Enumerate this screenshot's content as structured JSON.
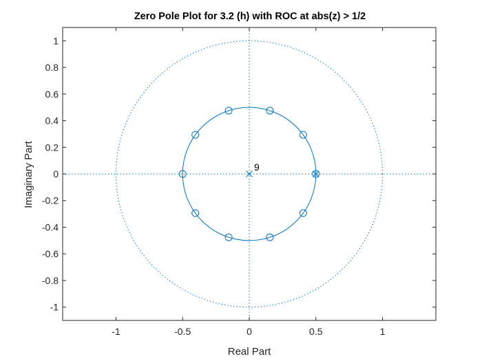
{
  "chart_data": {
    "type": "scatter",
    "title": "Zero Pole Plot for 3.2 (h) with ROC at abs(z) > 1/2",
    "xlabel": "Real Part",
    "ylabel": "Imaginary Part",
    "xlim": [
      -1.4,
      1.4
    ],
    "ylim": [
      -1.1,
      1.1
    ],
    "x_ticks": [
      -1,
      -0.5,
      0,
      0.5,
      1
    ],
    "x_tick_labels": [
      "-1",
      "-0.5",
      "0",
      "0.5",
      "1"
    ],
    "y_ticks": [
      1,
      0.8,
      0.6,
      0.4,
      0.2,
      0,
      -0.2,
      -0.4,
      -0.6,
      -0.8,
      -1
    ],
    "y_tick_labels": [
      "1",
      "0.8",
      "0.6",
      "0.4",
      "0.2",
      "0",
      "-0.2",
      "-0.4",
      "-0.6",
      "-0.8",
      "-1"
    ],
    "grid": false,
    "colors": {
      "series": "#0072BD",
      "axes": "#262626"
    },
    "unit_circle": {
      "radius": 1,
      "style": "dotted"
    },
    "roc_circle": {
      "radius": 0.5,
      "style": "solid"
    },
    "zeros": [
      {
        "re": 0.5,
        "im": 0
      },
      {
        "re": 0.4045,
        "im": 0.2939
      },
      {
        "re": 0.1545,
        "im": 0.4755
      },
      {
        "re": -0.1545,
        "im": 0.4755
      },
      {
        "re": -0.4045,
        "im": 0.2939
      },
      {
        "re": -0.5,
        "im": 0
      },
      {
        "re": -0.4045,
        "im": -0.2939
      },
      {
        "re": -0.1545,
        "im": -0.4755
      },
      {
        "re": 0.1545,
        "im": -0.4755
      },
      {
        "re": 0.4045,
        "im": -0.2939
      }
    ],
    "poles": [
      {
        "re": 0,
        "im": 0,
        "multiplicity": "9"
      },
      {
        "re": 0.5,
        "im": 0
      }
    ]
  }
}
